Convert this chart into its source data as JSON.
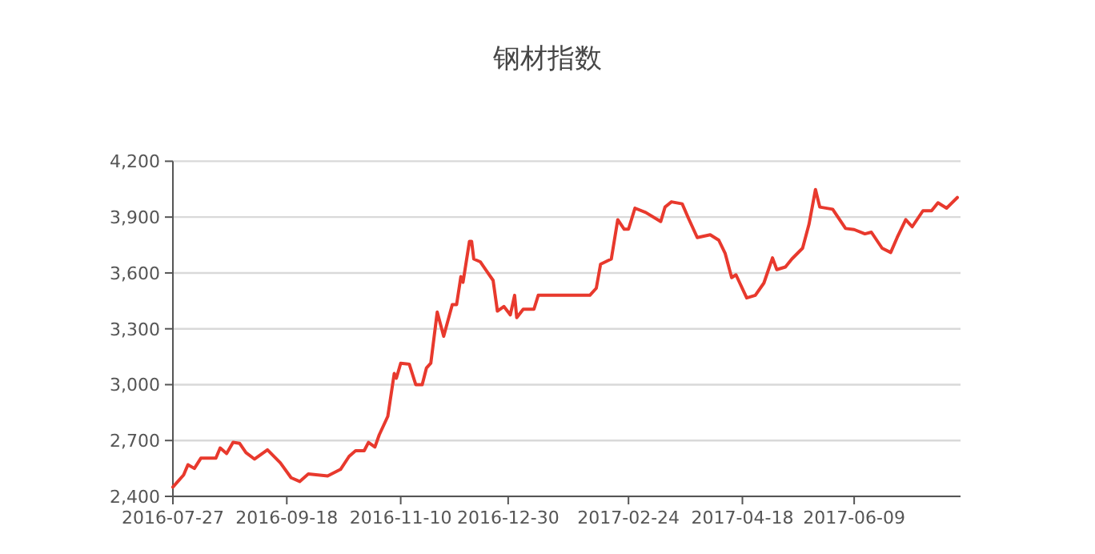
{
  "chart_data": {
    "type": "line",
    "title": "钢材指数",
    "grid": "y",
    "marker": "none",
    "line_style": "solid",
    "xlim": [
      "2016-07-27",
      "2017-07-27"
    ],
    "xticks": [
      "2016-07-27",
      "2016-09-18",
      "2016-11-10",
      "2016-12-30",
      "2017-02-24",
      "2017-04-18",
      "2017-06-09"
    ],
    "ylim": [
      2400,
      4200
    ],
    "yticks": [
      {
        "value": 2400,
        "label": "2,400"
      },
      {
        "value": 2700,
        "label": "2,700"
      },
      {
        "value": 3000,
        "label": "3,000"
      },
      {
        "value": 3300,
        "label": "3,300"
      },
      {
        "value": 3600,
        "label": "3,600"
      },
      {
        "value": 3900,
        "label": "3,900"
      },
      {
        "value": 4200,
        "label": "4,200"
      }
    ],
    "series": [
      {
        "color": "#e8392d",
        "x": [
          "2016-07-27",
          "2016-08-01",
          "2016-08-03",
          "2016-08-06",
          "2016-08-09",
          "2016-08-16",
          "2016-08-18",
          "2016-08-21",
          "2016-08-24",
          "2016-08-27",
          "2016-08-30",
          "2016-09-03",
          "2016-09-09",
          "2016-09-15",
          "2016-09-20",
          "2016-09-24",
          "2016-09-28",
          "2016-10-07",
          "2016-10-13",
          "2016-10-17",
          "2016-10-20",
          "2016-10-24",
          "2016-10-26",
          "2016-10-29",
          "2016-10-31",
          "2016-11-04",
          "2016-11-07",
          "2016-11-08",
          "2016-11-10",
          "2016-11-14",
          "2016-11-17",
          "2016-11-20",
          "2016-11-22",
          "2016-11-24",
          "2016-11-27",
          "2016-11-30",
          "2016-12-04",
          "2016-12-06",
          "2016-12-08",
          "2016-12-09",
          "2016-12-12",
          "2016-12-13",
          "2016-12-14",
          "2016-12-17",
          "2016-12-20",
          "2016-12-23",
          "2016-12-25",
          "2016-12-28",
          "2016-12-31",
          "2017-01-02",
          "2017-01-03",
          "2017-01-06",
          "2017-01-11",
          "2017-01-13",
          "2017-02-06",
          "2017-02-09",
          "2017-02-11",
          "2017-02-16",
          "2017-02-19",
          "2017-02-22",
          "2017-02-24",
          "2017-02-27",
          "2017-03-04",
          "2017-03-11",
          "2017-03-13",
          "2017-03-16",
          "2017-03-21",
          "2017-03-24",
          "2017-03-28",
          "2017-04-03",
          "2017-04-07",
          "2017-04-10",
          "2017-04-13",
          "2017-04-15",
          "2017-04-20",
          "2017-04-24",
          "2017-04-28",
          "2017-05-02",
          "2017-05-04",
          "2017-05-08",
          "2017-05-11",
          "2017-05-16",
          "2017-05-19",
          "2017-05-22",
          "2017-05-24",
          "2017-05-30",
          "2017-06-05",
          "2017-06-09",
          "2017-06-14",
          "2017-06-17",
          "2017-06-22",
          "2017-06-26",
          "2017-06-29",
          "2017-07-03",
          "2017-07-06",
          "2017-07-11",
          "2017-07-15",
          "2017-07-18",
          "2017-07-22",
          "2017-07-27"
        ],
        "values": [
          2450,
          2515,
          2570,
          2550,
          2605,
          2605,
          2660,
          2630,
          2690,
          2685,
          2635,
          2600,
          2650,
          2580,
          2500,
          2480,
          2520,
          2510,
          2545,
          2615,
          2645,
          2645,
          2690,
          2665,
          2730,
          2830,
          3060,
          3035,
          3115,
          3110,
          3000,
          3000,
          3090,
          3115,
          3390,
          3260,
          3430,
          3430,
          3580,
          3550,
          3770,
          3770,
          3675,
          3660,
          3610,
          3560,
          3395,
          3420,
          3375,
          3480,
          3360,
          3405,
          3405,
          3480,
          3480,
          3518,
          3647,
          3675,
          3886,
          3835,
          3835,
          3948,
          3925,
          3876,
          3954,
          3982,
          3971,
          3891,
          3790,
          3805,
          3776,
          3704,
          3575,
          3590,
          3466,
          3480,
          3546,
          3681,
          3618,
          3632,
          3675,
          3733,
          3862,
          4048,
          3954,
          3942,
          3839,
          3833,
          3810,
          3819,
          3733,
          3710,
          3790,
          3886,
          3848,
          3934,
          3934,
          3977,
          3948,
          4005
        ]
      }
    ]
  }
}
